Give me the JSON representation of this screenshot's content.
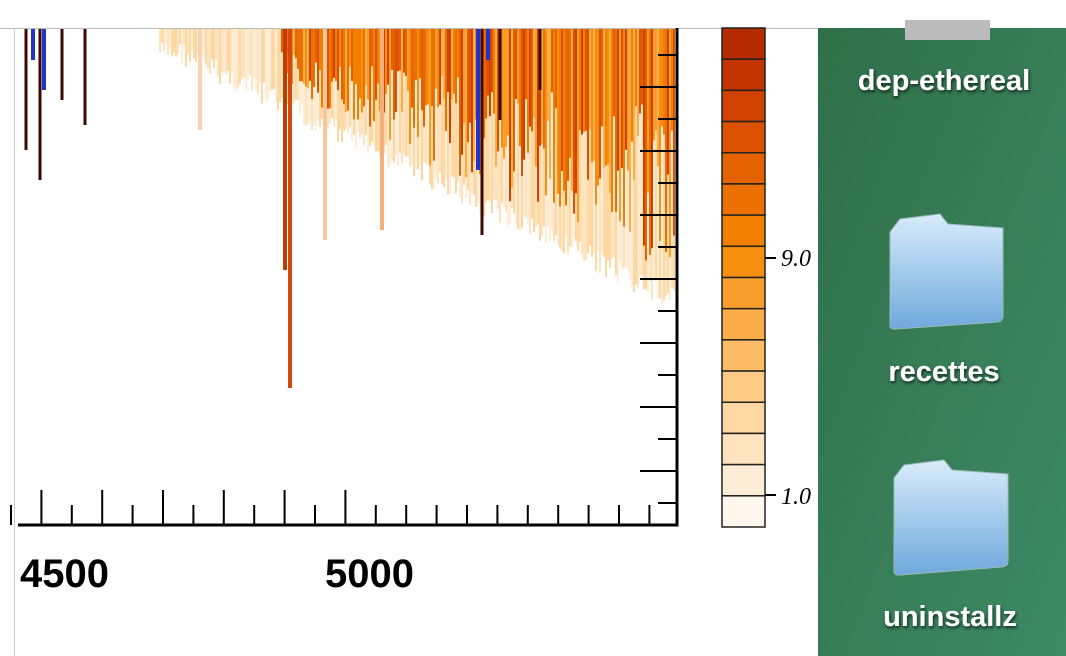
{
  "window": {
    "x_tick_labels": [
      "4500",
      "5000"
    ],
    "colorbar_labels": [
      "9.0",
      "1.0"
    ]
  },
  "desktop": {
    "icons": [
      {
        "label": "dep-ethereal"
      },
      {
        "label": "recettes"
      },
      {
        "label": "uninstallz"
      }
    ]
  }
}
